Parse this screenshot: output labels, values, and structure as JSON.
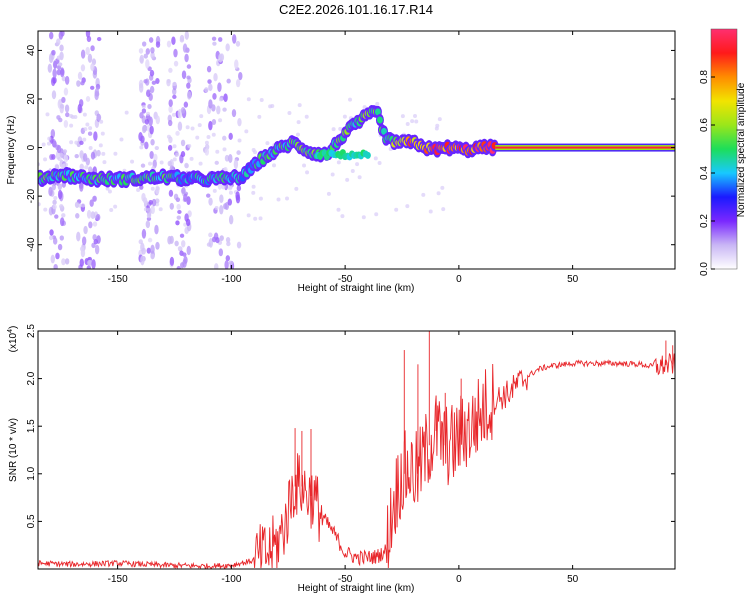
{
  "title": "C2E2.2026.101.16.17.R14",
  "colors": {
    "snr_line": "#e8262a",
    "axis": "#000000",
    "colorbar_stops": [
      "#ffffff",
      "#c9b6f5",
      "#7a28ff",
      "#1a1aff",
      "#18c9ff",
      "#1dde5a",
      "#9be61a",
      "#f2e400",
      "#ff8c00",
      "#ff1a1a",
      "#ff2f70"
    ]
  },
  "chart_data": [
    {
      "name": "spectrogram",
      "type": "heatmap",
      "xlabel": "Height of straight line (km)",
      "ylabel": "Frequency (Hz)",
      "xlim": [
        -185,
        95
      ],
      "ylim": [
        -50,
        48
      ],
      "xticks": [
        -150,
        -100,
        -50,
        0,
        50
      ],
      "yticks": [
        -40,
        -20,
        0,
        20,
        40
      ],
      "xtick_labels": [
        "-150",
        "-100",
        "-50",
        "0",
        "50"
      ],
      "ytick_labels": [
        "-40",
        "-20",
        "0",
        "20",
        "40"
      ],
      "colorbar_label": "Normalized spectral amplitude",
      "colorbar_range": [
        0,
        1
      ],
      "colorbar_ticks": [
        0.0,
        0.2,
        0.4,
        0.6,
        0.8
      ],
      "colorbar_tick_labels": [
        "0.0",
        "0.2",
        "0.4",
        "0.6",
        "0.8"
      ],
      "ridge": [
        {
          "x": -185,
          "y": -13,
          "a": 0.5
        },
        {
          "x": -175,
          "y": -11,
          "a": 0.45
        },
        {
          "x": -160,
          "y": -13,
          "a": 0.45
        },
        {
          "x": -145,
          "y": -13,
          "a": 0.45
        },
        {
          "x": -130,
          "y": -12,
          "a": 0.5
        },
        {
          "x": -118,
          "y": -13,
          "a": 0.4
        },
        {
          "x": -105,
          "y": -13,
          "a": 0.45
        },
        {
          "x": -95,
          "y": -12,
          "a": 0.4
        },
        {
          "x": -87,
          "y": -5,
          "a": 0.45
        },
        {
          "x": -80,
          "y": -1,
          "a": 0.45
        },
        {
          "x": -73,
          "y": 2,
          "a": 0.5
        },
        {
          "x": -65,
          "y": -2,
          "a": 0.5
        },
        {
          "x": -58,
          "y": -3,
          "a": 0.45
        },
        {
          "x": -50,
          "y": 6,
          "a": 0.5
        },
        {
          "x": -42,
          "y": 12,
          "a": 0.55
        },
        {
          "x": -36,
          "y": 15,
          "a": 0.5
        },
        {
          "x": -32,
          "y": 3,
          "a": 0.45
        },
        {
          "x": -25,
          "y": 2,
          "a": 0.75
        },
        {
          "x": -19,
          "y": 2,
          "a": 0.8
        },
        {
          "x": -12,
          "y": -1,
          "a": 0.8
        },
        {
          "x": -4,
          "y": 0,
          "a": 0.85
        },
        {
          "x": 3,
          "y": -1,
          "a": 0.85
        },
        {
          "x": 10,
          "y": 0,
          "a": 0.85
        },
        {
          "x": 16,
          "y": 0,
          "a": 0.9
        },
        {
          "x": 95,
          "y": 0,
          "a": 0.95
        }
      ],
      "noise_bands_x": [
        [
          -180,
          -172
        ],
        [
          -168,
          -158
        ],
        [
          -140,
          -132
        ],
        [
          -128,
          -118
        ],
        [
          -112,
          -96
        ]
      ]
    },
    {
      "name": "snr",
      "type": "line",
      "xlabel": "Height of straight line (km)",
      "ylabel": "SNR (10 * v/v)",
      "ymult_label": "(x10",
      "ymult_exp": "4",
      "ymult_close": ")",
      "xlim": [
        -185,
        95
      ],
      "ylim": [
        0,
        2.5
      ],
      "xticks": [
        -150,
        -100,
        -50,
        0,
        50
      ],
      "yticks": [
        0.5,
        1.0,
        1.5,
        2.0,
        2.5
      ],
      "xtick_labels": [
        "-150",
        "-100",
        "-50",
        "0",
        "50"
      ],
      "ytick_labels": [
        "0.5",
        "1.0",
        "1.5",
        "2.0",
        "2.5"
      ],
      "series": [
        {
          "name": "SNR",
          "x": [
            -185,
            -170,
            -150,
            -130,
            -110,
            -100,
            -92,
            -85,
            -80,
            -76,
            -73,
            -70,
            -67,
            -64,
            -60,
            -55,
            -50,
            -45,
            -40,
            -36,
            -32,
            -29,
            -26,
            -22,
            -18,
            -15,
            -12,
            -10,
            -6,
            -2,
            2,
            6,
            10,
            14,
            18,
            22,
            26,
            30,
            35,
            40,
            50,
            60,
            70,
            80,
            86,
            90,
            95
          ],
          "y": [
            0.06,
            0.05,
            0.06,
            0.04,
            0.03,
            0.04,
            0.08,
            0.15,
            0.25,
            0.5,
            0.85,
            0.9,
            0.8,
            0.75,
            0.55,
            0.38,
            0.17,
            0.12,
            0.12,
            0.13,
            0.2,
            0.65,
            0.95,
            1.05,
            1.0,
            1.2,
            1.35,
            1.45,
            1.3,
            1.3,
            1.45,
            1.5,
            1.65,
            1.75,
            1.8,
            1.85,
            1.95,
            2.02,
            2.1,
            2.13,
            2.16,
            2.16,
            2.16,
            2.15,
            2.12,
            2.14,
            2.15
          ]
        }
      ],
      "spikes": [
        {
          "x": -72,
          "y": 1.48
        },
        {
          "x": -69,
          "y": 1.45
        },
        {
          "x": -65,
          "y": 1.47
        },
        {
          "x": -24,
          "y": 2.3
        },
        {
          "x": -18,
          "y": 2.15
        },
        {
          "x": -13,
          "y": 2.5
        },
        {
          "x": -10,
          "y": 1.75
        },
        {
          "x": -6,
          "y": 1.85
        },
        {
          "x": 1,
          "y": 2.0
        },
        {
          "x": 91,
          "y": 2.4
        },
        {
          "x": 94,
          "y": 2.35
        }
      ]
    }
  ]
}
